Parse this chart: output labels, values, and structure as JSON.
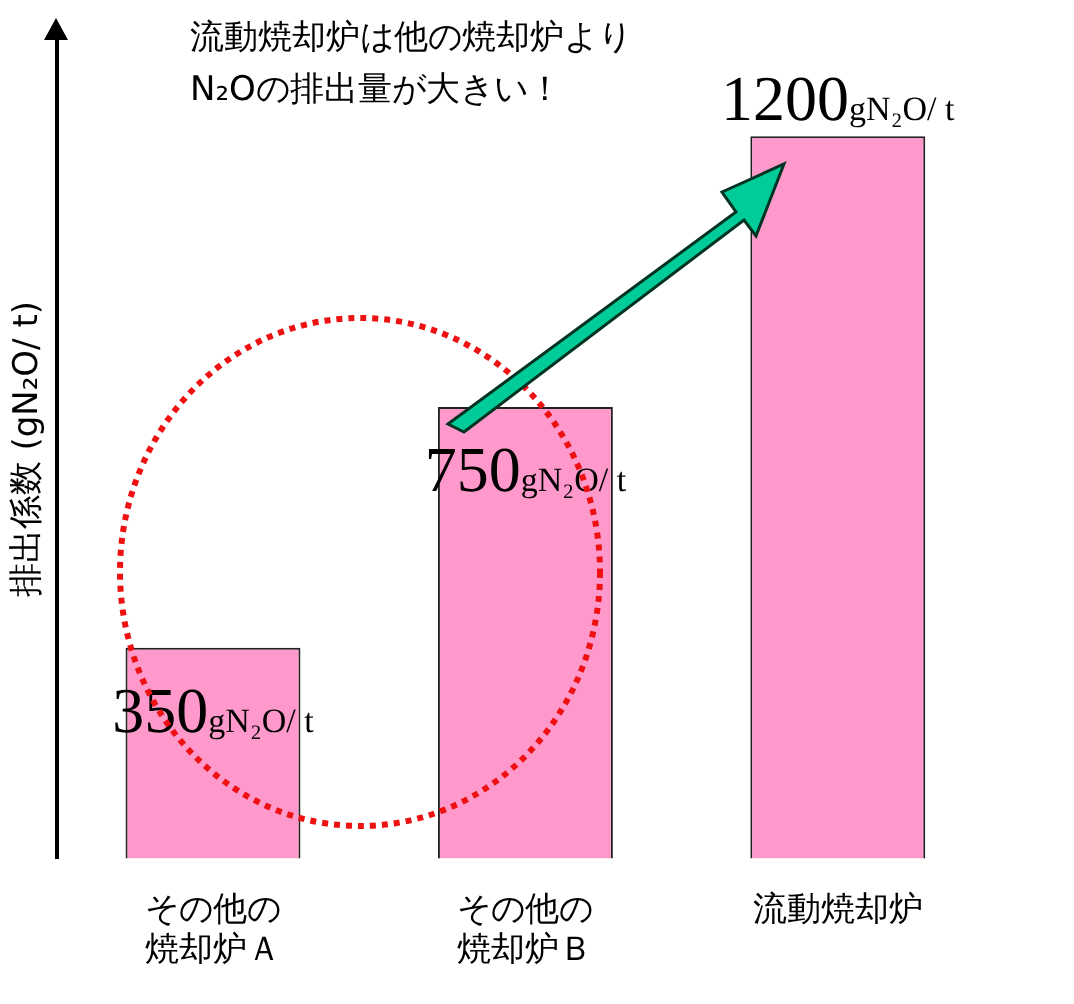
{
  "chart_data": {
    "type": "bar",
    "categories": [
      "その他の焼却炉Ａ",
      "その他の焼却炉Ｂ",
      "流動焼却炉"
    ],
    "values": [
      350,
      750,
      1200
    ],
    "color": "#ff99cc",
    "ylim": [
      0,
      1360
    ],
    "ylabel": "排出係数 (gN₂O/ t)",
    "value_labels": [
      "350gN₂O/ t",
      "750gN₂O/ t",
      "1200gN₂O/ t"
    ],
    "annotations": [
      "流動焼却炉は他の焼却炉よりN₂Oの排出量が大きい！"
    ],
    "grid": false,
    "legend": false
  }
}
